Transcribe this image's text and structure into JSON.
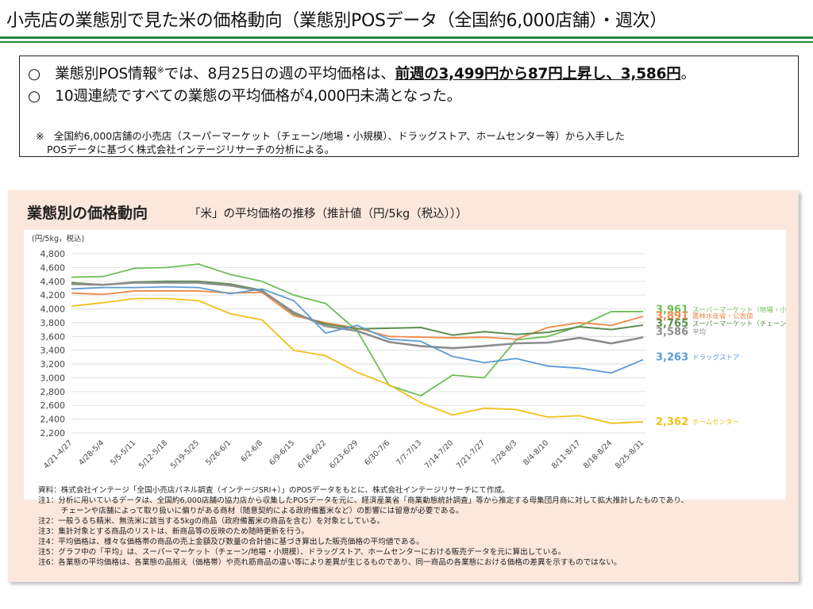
{
  "header": {
    "title": "小売店の業態別で見た米の価格動向（業態別POSデータ（全国約6,000店舗）・週次）"
  },
  "summary": {
    "line1_prefix": "○　業態別POS情報",
    "line1_mark": "※",
    "line1_mid": "では、8月25日の週の平均価格は、",
    "line1_highlight": "前週の3,499円から87円上昇し、3,586円",
    "line1_end": "。",
    "line2": "○　10週連続ですべての業態の平均価格が4,000円未満となった。",
    "note1": "※　全国約6,000店舗の小売店（スーパーマーケット（チェーン/地場・小規模）、ドラッグストア、ホームセンター等）から入手した",
    "note2": "POSデータに基づく株式会社インテージリサーチの分析による。"
  },
  "panel": {
    "title": "業態別の価格動向",
    "subtitle": "「米」の平均価格の推移（推計値（円/5kg（税込）））"
  },
  "chart_data": {
    "type": "line",
    "ylabel": "(円/5kg，税込)",
    "ylim": [
      2200,
      4800
    ],
    "yticks": [
      "4,800",
      "4,600",
      "4,400",
      "4,200",
      "4,000",
      "3,800",
      "3,600",
      "3,400",
      "3,200",
      "3,000",
      "2,800",
      "2,600",
      "2,400",
      "2,200"
    ],
    "ytick_values": [
      4800,
      4600,
      4400,
      4200,
      4000,
      3800,
      3600,
      3400,
      3200,
      3000,
      2800,
      2600,
      2400,
      2200
    ],
    "categories": [
      "4/21-4/27",
      "4/28-5/4",
      "5/5-5/11",
      "5/12-5/18",
      "5/19-5/25",
      "5/26-6/1",
      "6/2-6/8",
      "6/9-6/15",
      "6/16-6/22",
      "6/23-6/29",
      "6/30-7/6",
      "7/7-7/13",
      "7/14-7/20",
      "7/21-7/27",
      "7/28-8/3",
      "8/4-8/10",
      "8/11-8/17",
      "8/18-8/24",
      "8/25-8/31"
    ],
    "series": [
      {
        "name": "スーパーマーケット（地場・小規模）",
        "end_label": "3,961",
        "color": "#6cbf56",
        "width": 1.8,
        "values": [
          4460,
          4470,
          4590,
          4600,
          4650,
          4500,
          4400,
          4200,
          4080,
          3680,
          2890,
          2740,
          3040,
          3000,
          3550,
          3600,
          3750,
          3961,
          3961
        ]
      },
      {
        "name": "農林水産省・公表値",
        "end_label": "3,891",
        "color": "#ef8a4a",
        "width": 1.8,
        "values": [
          4230,
          4210,
          4260,
          4260,
          4260,
          4230,
          4240,
          3900,
          3800,
          3720,
          3600,
          3590,
          3580,
          3590,
          3560,
          3730,
          3800,
          3760,
          3891
        ]
      },
      {
        "name": "スーパーマーケット（チェーン）",
        "end_label": "3,765",
        "color": "#5c8e4e",
        "width": 2.0,
        "values": [
          4380,
          4350,
          4390,
          4400,
          4400,
          4360,
          4270,
          3930,
          3780,
          3710,
          3720,
          3730,
          3620,
          3670,
          3630,
          3660,
          3740,
          3700,
          3765
        ]
      },
      {
        "name": "平均",
        "end_label": "3,586",
        "color": "#8d8d8d",
        "width": 2.6,
        "values": [
          4360,
          4350,
          4380,
          4380,
          4380,
          4340,
          4260,
          3950,
          3750,
          3680,
          3520,
          3460,
          3430,
          3460,
          3500,
          3510,
          3580,
          3499,
          3586
        ]
      },
      {
        "name": "ドラッグストア",
        "end_label": "3,263",
        "color": "#5b9bd5",
        "width": 1.8,
        "values": [
          4290,
          4310,
          4310,
          4320,
          4310,
          4220,
          4290,
          4120,
          3650,
          3760,
          3560,
          3530,
          3310,
          3220,
          3280,
          3170,
          3140,
          3070,
          3263
        ]
      },
      {
        "name": "ホームセンター",
        "end_label": "2,362",
        "color": "#f2c01c",
        "width": 1.8,
        "values": [
          4040,
          4090,
          4150,
          4150,
          4120,
          3930,
          3840,
          3400,
          3320,
          3080,
          2900,
          2640,
          2460,
          2560,
          2540,
          2430,
          2450,
          2340,
          2362
        ]
      }
    ]
  },
  "footnotes": [
    "資料：株式会社インテージ「全国小売店パネル調査（インテージSRI+）」のPOSデータをもとに、株式会社インテージリサーチにて作成。",
    "注1：分析に用いているデータは、全国約6,000店舗の協力店から収集したPOSデータを元に、経済産業省「商業動態統計調査」等から推定する母集団月商に対して拡大推計したものであり、",
    "　　　チェーンや店舗によって取り扱いに偏りがある商材（随意契約による政府備蓄米など）の影響には留意が必要である。",
    "注2：一般うるち精米、無洗米に該当する5kgの商品（政府備蓄米の商品を含む）を対象としている。",
    "注3：集計対象とする商品のリストは、新商品等の反映のため随時更新を行う。",
    "注4：平均価格は、様々な価格帯の商品の売上金額及び数量の合計値に基づき算出した販売価格の平均値である。",
    "注5：グラフ中の「平均」は、スーパーマーケット（チェーン/地場・小規模）、ドラッグストア、ホームセンターにおける販売データを元に算出している。",
    "注6：各業態の平均価格は、各業態の品揃え（価格帯）や売れ筋商品の違い等により差異が生じるものであり、同一商品の各業態における価格の差異を示すものではない。"
  ]
}
